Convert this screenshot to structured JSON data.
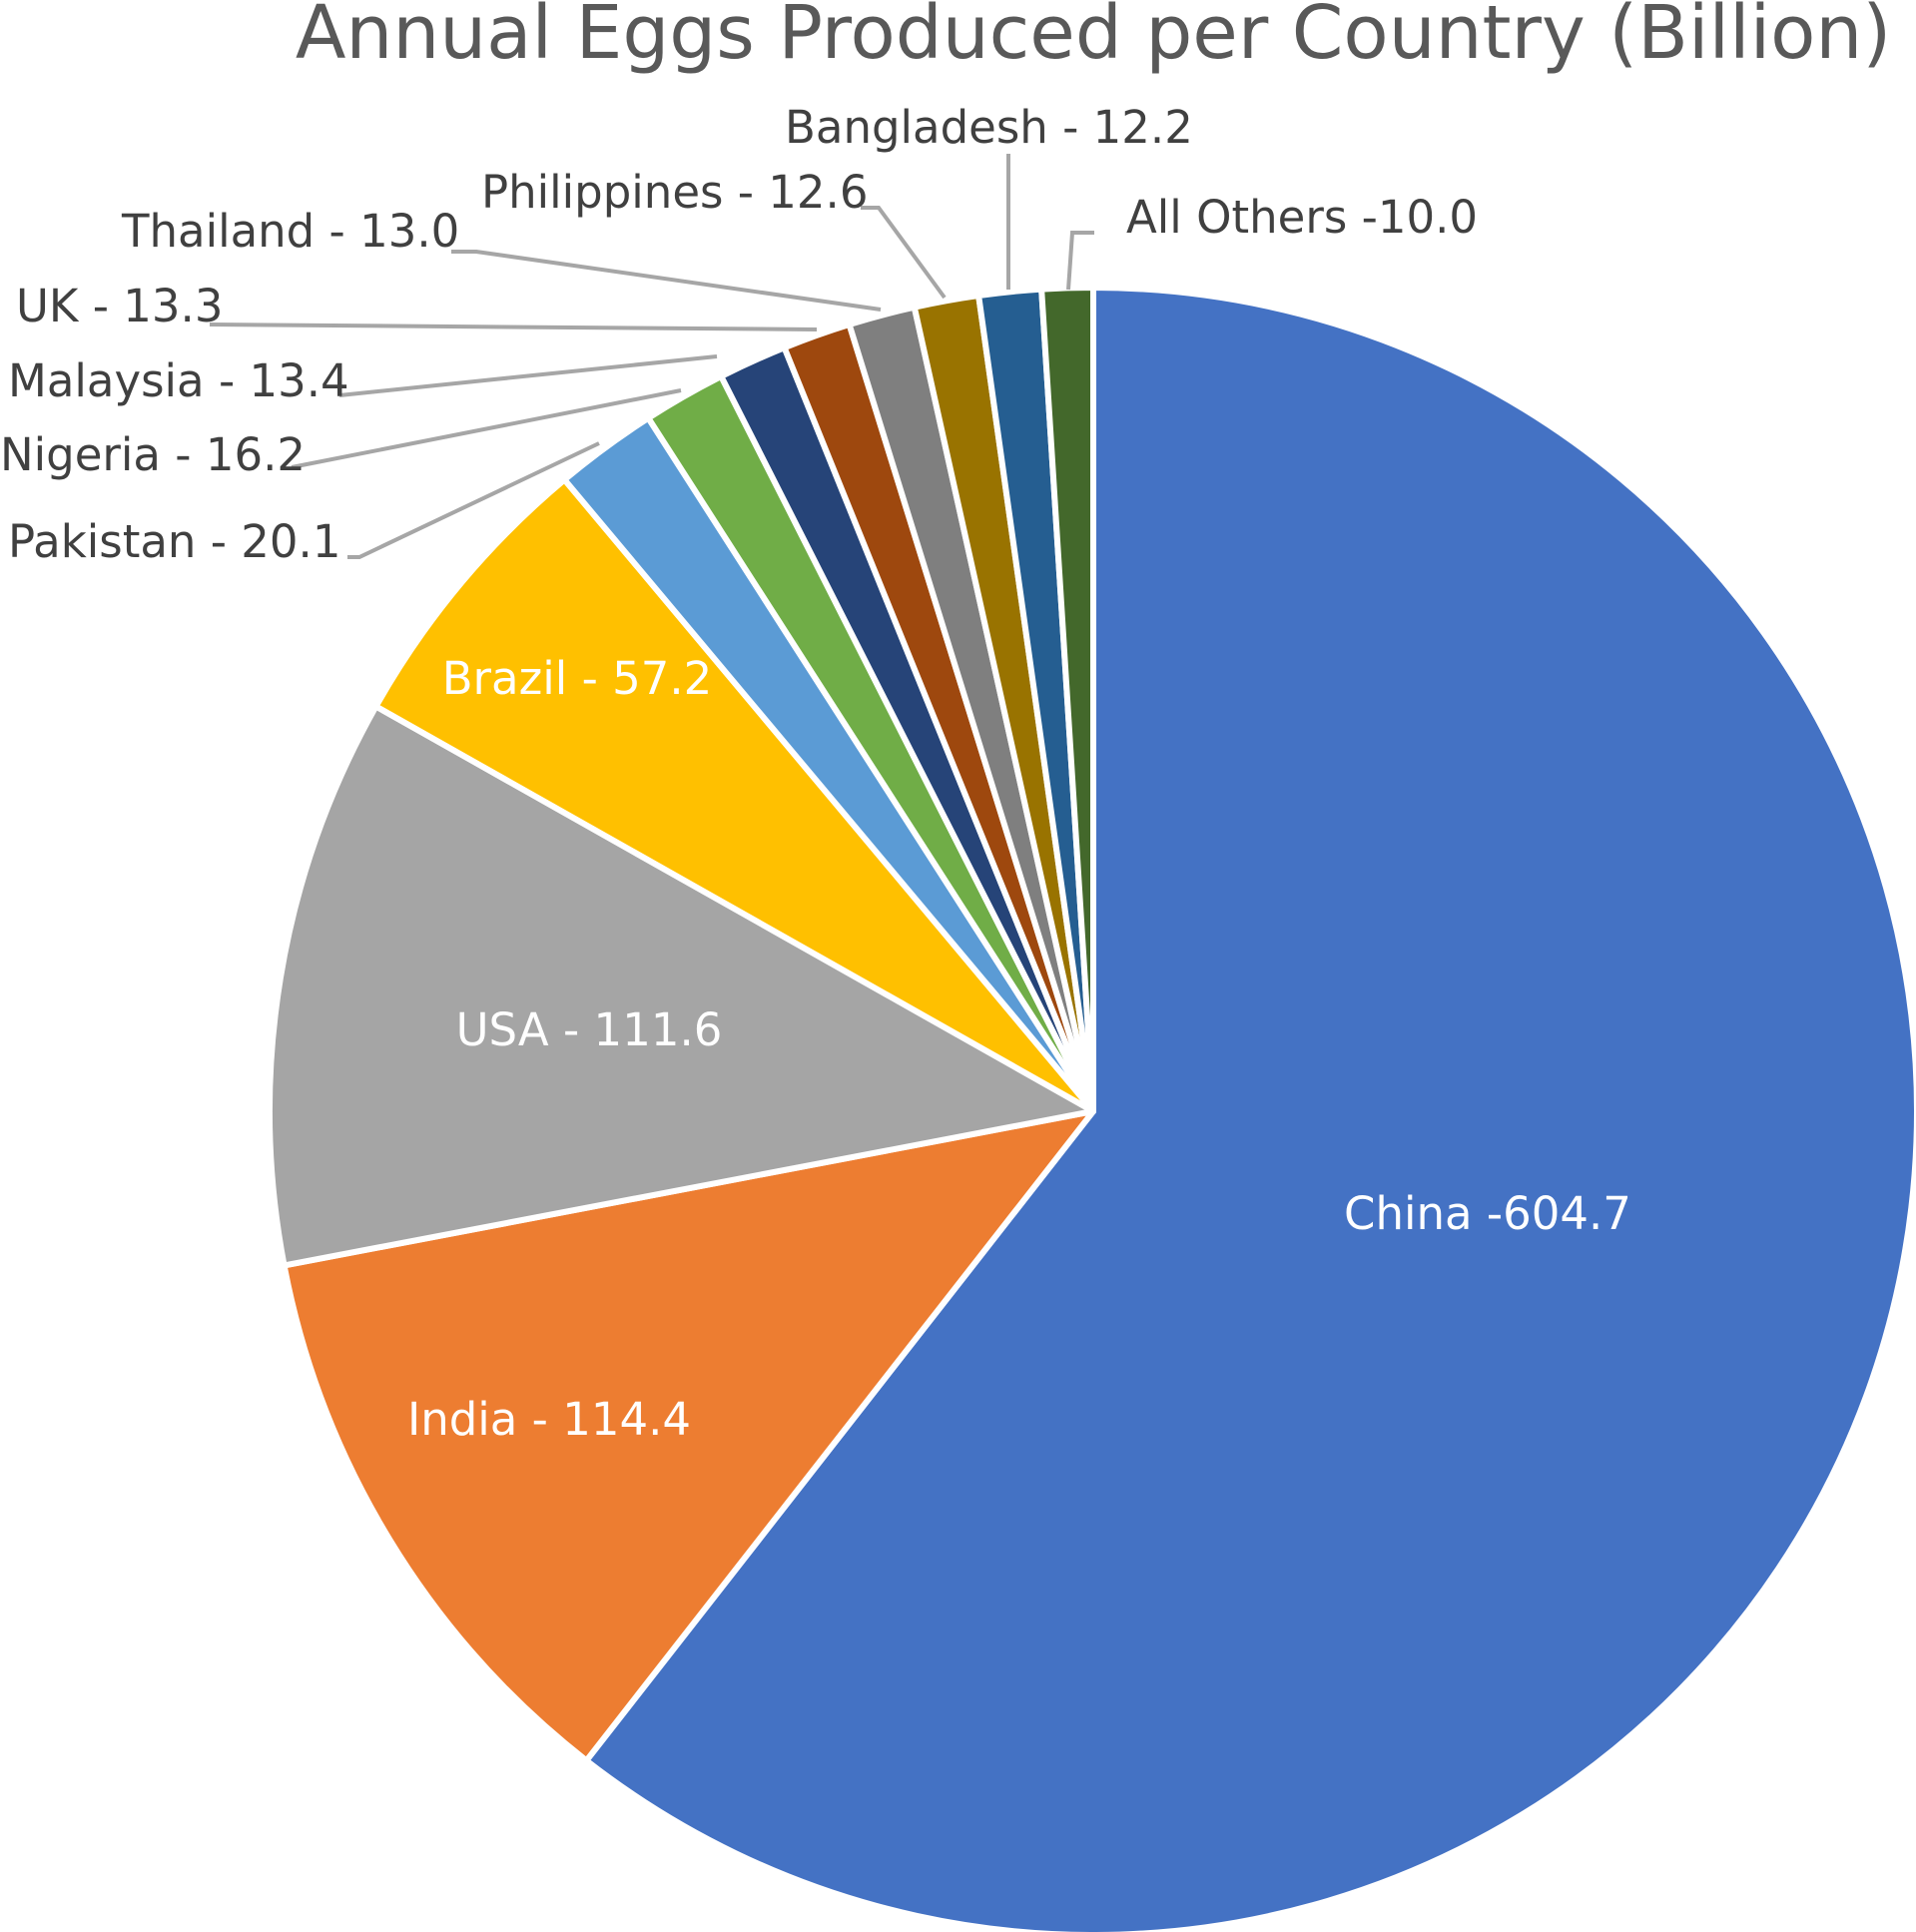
{
  "chart_data": {
    "type": "pie",
    "title": "Annual Eggs Produced per Country (Billion)",
    "unit": "Billion",
    "start_angle_deg": 0,
    "direction": "clockwise",
    "slices": [
      {
        "name": "China",
        "value": 604.7,
        "label": "China -604.7",
        "color": "#4472C4",
        "label_position": "inside"
      },
      {
        "name": "India",
        "value": 114.4,
        "label": "India - 114.4",
        "color": "#ED7D31",
        "label_position": "inside"
      },
      {
        "name": "USA",
        "value": 111.6,
        "label": "USA - 111.6",
        "color": "#A5A5A5",
        "label_position": "inside"
      },
      {
        "name": "Brazil",
        "value": 57.2,
        "label": "Brazil - 57.2",
        "color": "#FFC000",
        "label_position": "inside"
      },
      {
        "name": "Pakistan",
        "value": 20.1,
        "label": "Pakistan - 20.1",
        "color": "#5B9BD5",
        "label_position": "outside"
      },
      {
        "name": "Nigeria",
        "value": 16.2,
        "label": "Nigeria - 16.2",
        "color": "#70AD47",
        "label_position": "outside"
      },
      {
        "name": "Malaysia",
        "value": 13.4,
        "label": "Malaysia - 13.4",
        "color": "#264478",
        "label_position": "outside"
      },
      {
        "name": "UK",
        "value": 13.3,
        "label": "UK - 13.3",
        "color": "#9E480E",
        "label_position": "outside"
      },
      {
        "name": "Thailand",
        "value": 13.0,
        "label": "Thailand - 13.0",
        "color": "#7F7F7F",
        "label_position": "outside"
      },
      {
        "name": "Philippines",
        "value": 12.6,
        "label": "Philippines - 12.6",
        "color": "#997300",
        "label_position": "outside"
      },
      {
        "name": "Bangladesh",
        "value": 12.2,
        "label": "Bangladesh - 12.2",
        "color": "#255E91",
        "label_position": "outside"
      },
      {
        "name": "All Others",
        "value": 10.0,
        "label": "All Others -10.0",
        "color": "#43682B",
        "label_position": "outside"
      }
    ]
  }
}
